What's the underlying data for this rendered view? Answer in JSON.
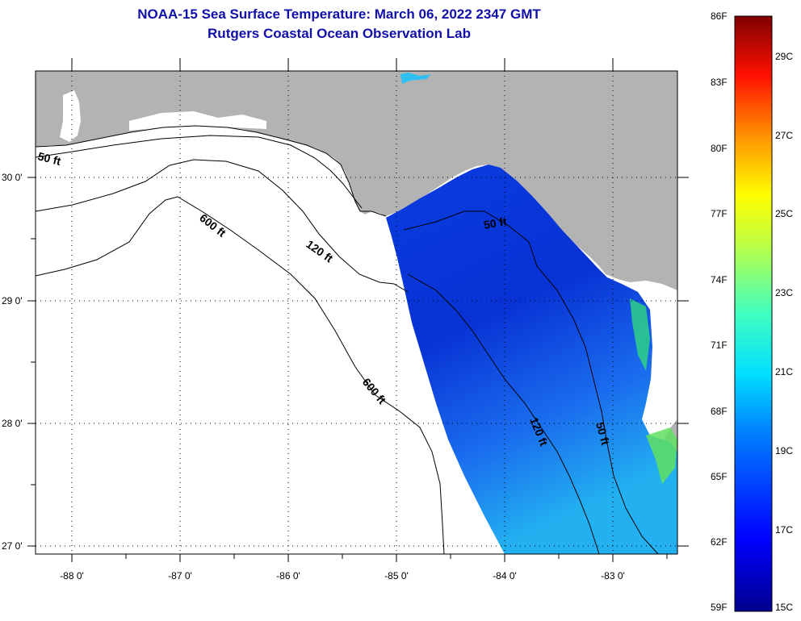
{
  "header": {
    "title": "NOAA-15 Sea Surface Temperature:  March 06, 2022 2347 GMT",
    "subtitle": "Rutgers Coastal Ocean Observation Lab"
  },
  "map": {
    "lon_labels": [
      "-88 0'",
      "-87 0'",
      "-86 0'",
      "-85 0'",
      "-84 0'",
      "-83 0'"
    ],
    "lat_labels": [
      "30 0'",
      "29 0'",
      "28 0'",
      "27 0'"
    ],
    "contour_labels": [
      "50 ft",
      "600 ft",
      "120 ft",
      "50 ft",
      "600 ft",
      "120 ft",
      "50 ft"
    ],
    "colors": {
      "land": "#b3b3b3",
      "ocean_no_data": "#ffffff",
      "sst_main": "#1a55e6"
    }
  },
  "colorbar": {
    "fahrenheit": [
      "86F",
      "83F",
      "80F",
      "77F",
      "74F",
      "71F",
      "68F",
      "65F",
      "62F",
      "59F"
    ],
    "celsius": [
      "29C",
      "27C",
      "25C",
      "23C",
      "21C",
      "19C",
      "17C",
      "15C"
    ]
  }
}
